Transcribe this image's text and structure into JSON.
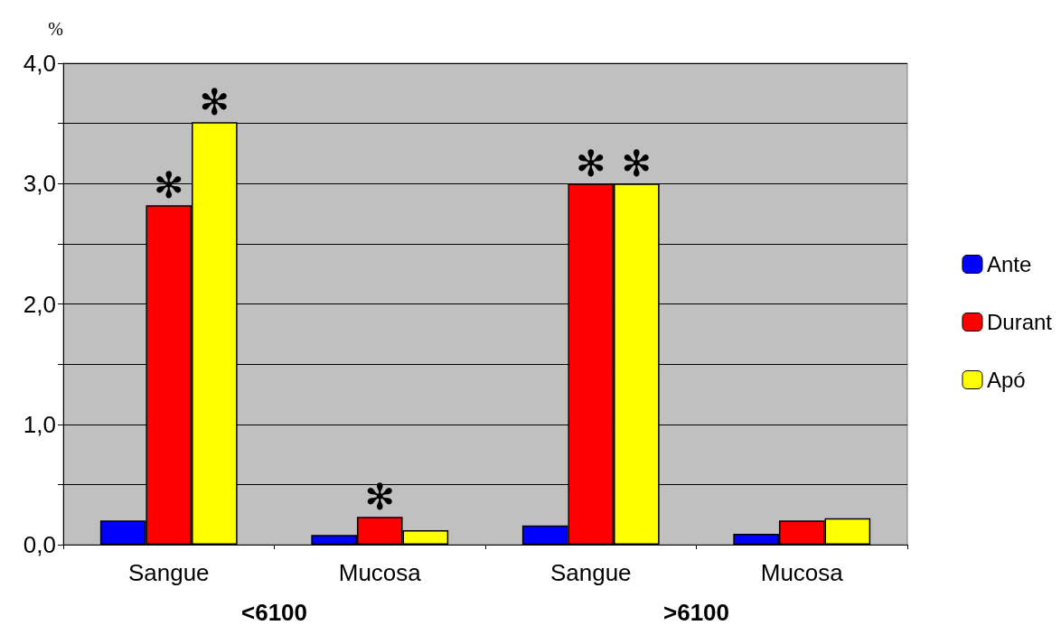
{
  "chart_data": {
    "type": "bar",
    "ylabel": "%",
    "categories": [
      "Sangue",
      "Mucosa",
      "Sangue",
      "Mucosa"
    ],
    "series": [
      {
        "name": "Ante",
        "color": "#0000ff",
        "values": [
          0.2,
          0.08,
          0.16,
          0.09
        ]
      },
      {
        "name": "Durant",
        "color": "#ff0000",
        "values": [
          2.82,
          0.23,
          3.0,
          0.2
        ],
        "value_labels": [
          "✻",
          "✻",
          "✻",
          null
        ]
      },
      {
        "name": "Apó",
        "color": "#ffff00",
        "values": [
          3.51,
          0.12,
          3.0,
          0.22
        ],
        "value_labels": [
          "✻",
          null,
          "✻",
          null
        ]
      }
    ],
    "annotations": [
      "<6100",
      ">6100"
    ],
    "ylim": [
      0,
      4
    ],
    "yticks": [
      {
        "value": 0,
        "label": "0,0"
      },
      {
        "value": 0.5,
        "label": null
      },
      {
        "value": 1,
        "label": "1,0"
      },
      {
        "value": 1.5,
        "label": null
      },
      {
        "value": 2,
        "label": "2,0"
      },
      {
        "value": 2.5,
        "label": null
      },
      {
        "value": 3,
        "label": "3,0"
      },
      {
        "value": 3.5,
        "label": null
      },
      {
        "value": 4,
        "label": "4,0"
      }
    ],
    "grid": "y",
    "legend": "right"
  }
}
